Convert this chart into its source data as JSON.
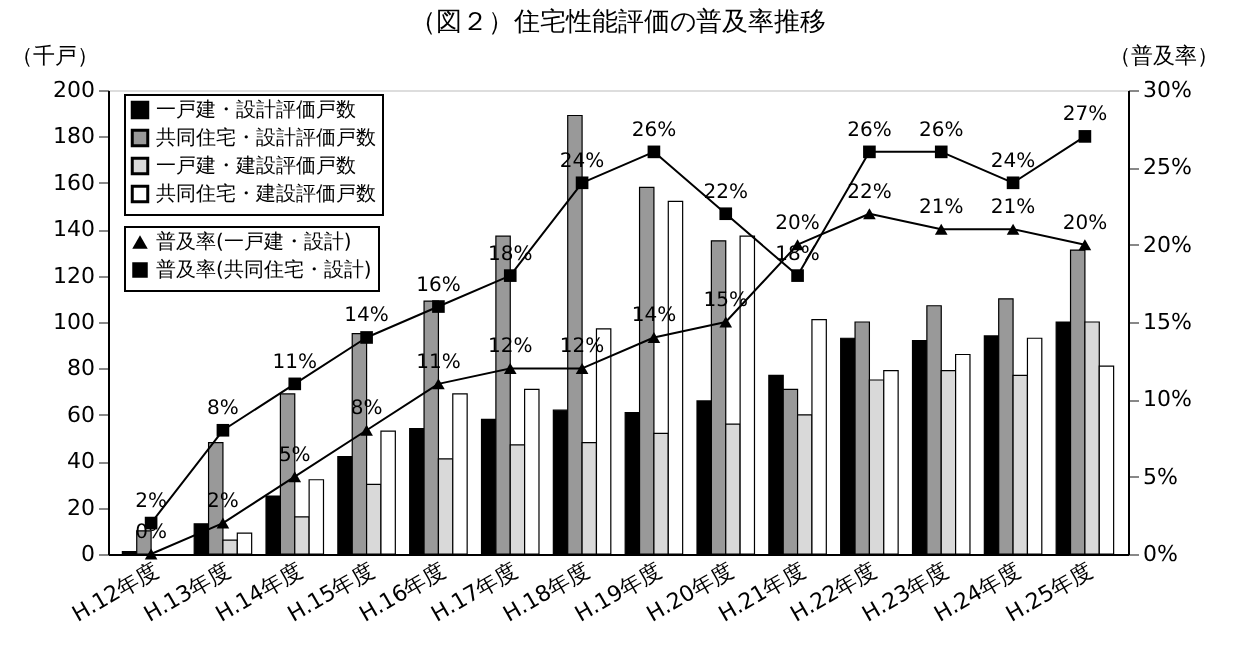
{
  "chart_data": {
    "type": "bar",
    "title": "（図２）住宅性能評価の普及率推移",
    "ylabel": "（千戸）",
    "y2label": "（普及率）",
    "categories": [
      "H.12年度",
      "H.13年度",
      "H.14年度",
      "H.15年度",
      "H.16年度",
      "H.17年度",
      "H.18年度",
      "H.19年度",
      "H.20年度",
      "H.21年度",
      "H.22年度",
      "H.23年度",
      "H.24年度",
      "H.25年度"
    ],
    "series": [
      {
        "name": "一戸建・設計評価戸数",
        "color": "#000000",
        "values": [
          1,
          13,
          25,
          42,
          54,
          58,
          62,
          61,
          66,
          77,
          93,
          92,
          94,
          100
        ]
      },
      {
        "name": "共同住宅・設計評価戸数",
        "color": "#999999",
        "values": [
          10,
          48,
          69,
          95,
          109,
          137,
          189,
          158,
          135,
          71,
          100,
          107,
          110,
          131
        ]
      },
      {
        "name": "一戸建・建設評価戸数",
        "color": "#d9d9d9",
        "values": [
          0,
          6,
          16,
          30,
          41,
          47,
          48,
          52,
          56,
          60,
          75,
          79,
          77,
          100
        ]
      },
      {
        "name": "共同住宅・建設評価戸数",
        "color": "#ffffff",
        "values": [
          0,
          9,
          32,
          53,
          69,
          71,
          97,
          152,
          137,
          101,
          79,
          86,
          93,
          81
        ]
      },
      {
        "name": "普及率(一戸建・設計)",
        "type": "line",
        "axis": "y2",
        "marker": "triangle",
        "color": "#000000",
        "values": [
          0,
          2,
          5,
          8,
          11,
          12,
          12,
          14,
          15,
          20,
          22,
          21,
          21,
          20
        ],
        "value_labels": [
          "0%",
          "2%",
          "5%",
          "8%",
          "11%",
          "12%",
          "12%",
          "14%",
          "15%",
          "20%",
          "22%",
          "21%",
          "21%",
          "20%"
        ]
      },
      {
        "name": "普及率(共同住宅・設計)",
        "type": "line",
        "axis": "y2",
        "marker": "square",
        "color": "#000000",
        "values": [
          2,
          8,
          11,
          14,
          16,
          18,
          24,
          26,
          22,
          18,
          26,
          26,
          24,
          27
        ],
        "value_labels": [
          "2%",
          "8%",
          "11%",
          "14%",
          "16%",
          "18%",
          "24%",
          "26%",
          "22%",
          "18%",
          "26%",
          "26%",
          "24%",
          "27%"
        ]
      }
    ],
    "ylim": [
      0,
      200
    ],
    "yticks": [
      0,
      20,
      40,
      60,
      80,
      100,
      120,
      140,
      160,
      180,
      200
    ],
    "y2lim": [
      0,
      30
    ],
    "y2ticks": [
      {
        "value": 0,
        "label": "0%"
      },
      {
        "value": 5,
        "label": "5%"
      },
      {
        "value": 10,
        "label": "10%"
      },
      {
        "value": 15,
        "label": "15%"
      },
      {
        "value": 20,
        "label": "20%"
      },
      {
        "value": 25,
        "label": "25%"
      },
      {
        "value": 30,
        "label": "30%"
      }
    ],
    "legend": "top left",
    "grid": false
  }
}
